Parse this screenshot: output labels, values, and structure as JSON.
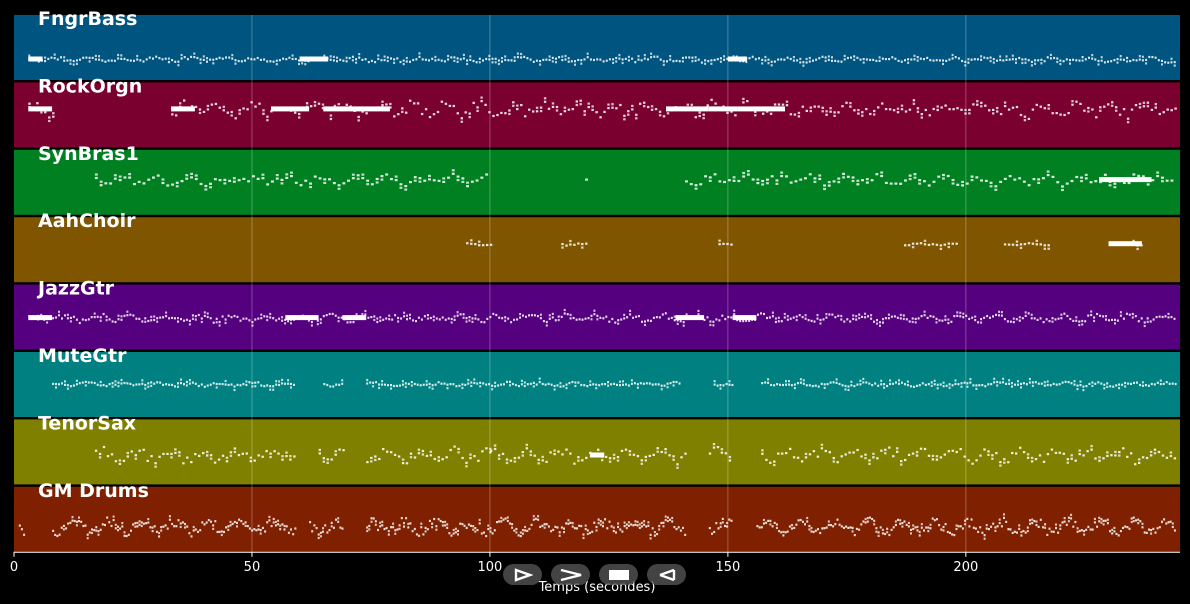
{
  "chart_data": {
    "type": "piano-roll",
    "xlabel": "Temps (secondes)",
    "xlim": [
      0,
      245
    ],
    "x_ticks": [
      0,
      50,
      100,
      150,
      200
    ],
    "grid": true,
    "tracks": [
      {
        "name": "FngrBass",
        "color": "#005580",
        "segments": [
          [
            3,
            244
          ]
        ],
        "density": 1.5,
        "range": [
          0.62,
          0.72
        ],
        "blocks": [
          [
            3,
            6
          ],
          [
            60,
            66
          ],
          [
            150,
            154
          ]
        ]
      },
      {
        "name": "RockOrgn",
        "color": "#7a0030",
        "segments": [
          [
            3,
            8
          ],
          [
            33,
            54
          ],
          [
            58,
            244
          ]
        ],
        "density": 1.2,
        "range": [
          0.25,
          0.55
        ],
        "blocks": [
          [
            3,
            8
          ],
          [
            33,
            38
          ],
          [
            54,
            62
          ],
          [
            65,
            70
          ],
          [
            70,
            79
          ],
          [
            137,
            146
          ],
          [
            146,
            152
          ],
          [
            152,
            162
          ]
        ]
      },
      {
        "name": "SynBras1",
        "color": "#008020",
        "segments": [
          [
            17,
            100
          ],
          [
            120,
            121
          ],
          [
            141,
            229
          ],
          [
            229,
            240
          ],
          [
            240,
            244
          ]
        ],
        "density": 1.0,
        "range": [
          0.35,
          0.55
        ],
        "blocks": [
          [
            228,
            239
          ]
        ]
      },
      {
        "name": "AahChoir",
        "color": "#805500",
        "segments": [
          [
            95,
            100
          ],
          [
            115,
            120
          ],
          [
            148,
            151
          ],
          [
            187,
            198
          ],
          [
            208,
            218
          ],
          [
            230,
            237
          ]
        ],
        "density": 1.2,
        "range": [
          0.38,
          0.42
        ],
        "blocks": [
          [
            230,
            237
          ]
        ]
      },
      {
        "name": "JazzGtr",
        "color": "#55007f",
        "segments": [
          [
            3,
            244
          ]
        ],
        "density": 1.6,
        "range": [
          0.42,
          0.58
        ],
        "blocks": [
          [
            3,
            8
          ],
          [
            57,
            64
          ],
          [
            69,
            74
          ],
          [
            139,
            145
          ],
          [
            151,
            156
          ]
        ]
      },
      {
        "name": "MuteGtr",
        "color": "#008080",
        "segments": [
          [
            8,
            59
          ],
          [
            65,
            69
          ],
          [
            74,
            140
          ],
          [
            147,
            151
          ],
          [
            157,
            244
          ]
        ],
        "density": 1.6,
        "range": [
          0.44,
          0.52
        ],
        "blocks": []
      },
      {
        "name": "TenorSax",
        "color": "#808000",
        "segments": [
          [
            17,
            59
          ],
          [
            64,
            69
          ],
          [
            74,
            100
          ],
          [
            100,
            141
          ],
          [
            146,
            151
          ],
          [
            157,
            244
          ]
        ],
        "density": 1.2,
        "range": [
          0.4,
          0.68
        ],
        "blocks": [
          [
            121,
            124
          ]
        ]
      },
      {
        "name": "GM Drums",
        "color": "#7f2000",
        "segments": [
          [
            1,
            2
          ],
          [
            8,
            59
          ],
          [
            62,
            69
          ],
          [
            74,
            141
          ],
          [
            146,
            151
          ],
          [
            156,
            244
          ]
        ],
        "density": 2.2,
        "range": [
          0.45,
          0.75
        ],
        "blocks": []
      }
    ]
  },
  "controls": {
    "buttons": [
      {
        "name": "play-button",
        "icon": "play-outline-icon"
      },
      {
        "name": "forward-button",
        "icon": "chevron-right-icon"
      },
      {
        "name": "stop-button",
        "icon": "stop-icon"
      },
      {
        "name": "rewind-button",
        "icon": "rewind-icon"
      }
    ]
  }
}
